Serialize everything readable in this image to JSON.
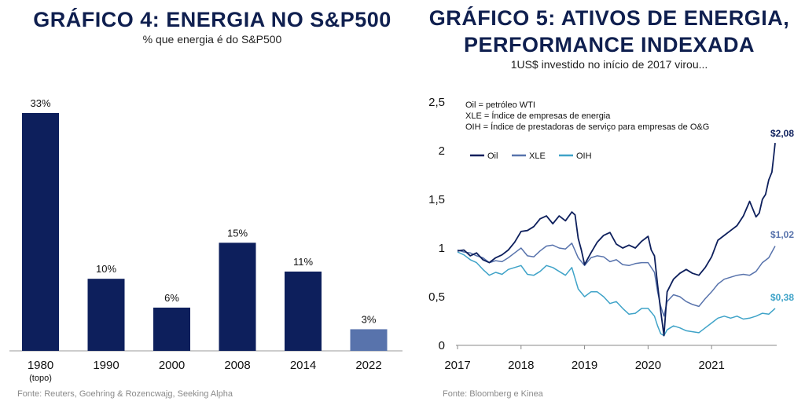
{
  "left": {
    "title": "GRÁFICO 4: ENERGIA NO S&P500",
    "subtitle": "% que energia é do S&P500",
    "source": "Fonte: Reuters, Goehring & Rozencwajg, Seeking Alpha"
  },
  "right": {
    "title_line1": "GRÁFICO 5: ATIVOS DE ENERGIA,",
    "title_line2": "PERFORMANCE INDEXADA",
    "subtitle": "1US$ investido no início de 2017 virou...",
    "source": "Fonte: Bloomberg e Kinea",
    "notes": [
      "Oil = petróleo WTI",
      "XLE = Índice de empresas de energia",
      "OIH = Índice de prestadoras de serviço para empresas de O&G"
    ]
  },
  "chart_data": [
    {
      "type": "bar",
      "categories": [
        "1980",
        "1990",
        "2000",
        "2008",
        "2014",
        "2022"
      ],
      "category_sublabels": [
        "(topo)",
        "",
        "",
        "",
        "",
        ""
      ],
      "values": [
        33,
        10,
        6,
        15,
        11,
        3
      ],
      "value_labels": [
        "33%",
        "10%",
        "6%",
        "15%",
        "11%",
        "3%"
      ],
      "colors": [
        "#0d1f5c",
        "#0d1f5c",
        "#0d1f5c",
        "#0d1f5c",
        "#0d1f5c",
        "#5873ac"
      ],
      "ylim": [
        0,
        36
      ]
    },
    {
      "type": "line",
      "x_ticks": [
        "2017",
        "2018",
        "2019",
        "2020",
        "2021"
      ],
      "y_ticks": [
        "0",
        "0,5",
        "1",
        "1,5",
        "2",
        "2,5"
      ],
      "ylim": [
        0,
        2.5
      ],
      "xlim": [
        2017,
        2022.05
      ],
      "legend": "top-left",
      "series": [
        {
          "name": "Oil",
          "color": "#0d1f5c",
          "end_label": "$2,08",
          "x": [
            2017.0,
            2017.1,
            2017.2,
            2017.3,
            2017.4,
            2017.5,
            2017.6,
            2017.7,
            2017.8,
            2017.9,
            2018.0,
            2018.1,
            2018.2,
            2018.3,
            2018.4,
            2018.5,
            2018.6,
            2018.7,
            2018.8,
            2018.85,
            2018.9,
            2018.95,
            2019.0,
            2019.1,
            2019.2,
            2019.3,
            2019.4,
            2019.5,
            2019.6,
            2019.7,
            2019.8,
            2019.9,
            2020.0,
            2020.05,
            2020.1,
            2020.15,
            2020.2,
            2020.25,
            2020.3,
            2020.4,
            2020.5,
            2020.6,
            2020.7,
            2020.8,
            2020.9,
            2021.0,
            2021.1,
            2021.2,
            2021.3,
            2021.4,
            2021.5,
            2021.6,
            2021.7,
            2021.75,
            2021.8,
            2021.85,
            2021.9,
            2021.95,
            2021.98,
            2022.0
          ],
          "values": [
            0.97,
            0.98,
            0.92,
            0.95,
            0.88,
            0.85,
            0.9,
            0.93,
            0.98,
            1.06,
            1.17,
            1.18,
            1.22,
            1.3,
            1.33,
            1.25,
            1.33,
            1.28,
            1.37,
            1.34,
            1.1,
            0.98,
            0.83,
            0.95,
            1.06,
            1.13,
            1.16,
            1.04,
            1.0,
            1.03,
            1.0,
            1.07,
            1.12,
            0.98,
            0.92,
            0.62,
            0.35,
            0.1,
            0.55,
            0.68,
            0.74,
            0.78,
            0.74,
            0.72,
            0.8,
            0.91,
            1.08,
            1.13,
            1.18,
            1.23,
            1.33,
            1.48,
            1.32,
            1.36,
            1.5,
            1.55,
            1.7,
            1.78,
            1.95,
            2.08
          ]
        },
        {
          "name": "XLE",
          "color": "#5873ac",
          "end_label": "$1,02",
          "x": [
            2017.0,
            2017.1,
            2017.2,
            2017.3,
            2017.4,
            2017.5,
            2017.6,
            2017.7,
            2017.8,
            2017.9,
            2018.0,
            2018.1,
            2018.2,
            2018.3,
            2018.4,
            2018.5,
            2018.6,
            2018.7,
            2018.8,
            2018.9,
            2019.0,
            2019.1,
            2019.2,
            2019.3,
            2019.4,
            2019.5,
            2019.6,
            2019.7,
            2019.8,
            2019.9,
            2020.0,
            2020.1,
            2020.15,
            2020.2,
            2020.25,
            2020.3,
            2020.4,
            2020.5,
            2020.6,
            2020.7,
            2020.8,
            2020.9,
            2021.0,
            2021.1,
            2021.2,
            2021.3,
            2021.4,
            2021.5,
            2021.6,
            2021.7,
            2021.8,
            2021.9,
            2022.0
          ],
          "values": [
            0.98,
            0.96,
            0.95,
            0.92,
            0.9,
            0.85,
            0.87,
            0.86,
            0.9,
            0.95,
            1.0,
            0.92,
            0.91,
            0.97,
            1.02,
            1.03,
            1.0,
            0.99,
            1.05,
            0.9,
            0.82,
            0.9,
            0.92,
            0.91,
            0.86,
            0.88,
            0.83,
            0.82,
            0.84,
            0.85,
            0.85,
            0.75,
            0.55,
            0.4,
            0.3,
            0.45,
            0.52,
            0.5,
            0.45,
            0.42,
            0.4,
            0.48,
            0.55,
            0.63,
            0.68,
            0.7,
            0.72,
            0.73,
            0.72,
            0.76,
            0.85,
            0.9,
            1.02
          ]
        },
        {
          "name": "OIH",
          "color": "#3fa3c8",
          "end_label": "$0,38",
          "x": [
            2017.0,
            2017.1,
            2017.2,
            2017.3,
            2017.4,
            2017.5,
            2017.6,
            2017.7,
            2017.8,
            2017.9,
            2018.0,
            2018.1,
            2018.2,
            2018.3,
            2018.4,
            2018.5,
            2018.6,
            2018.7,
            2018.8,
            2018.9,
            2019.0,
            2019.1,
            2019.2,
            2019.3,
            2019.4,
            2019.5,
            2019.6,
            2019.7,
            2019.8,
            2019.9,
            2020.0,
            2020.1,
            2020.15,
            2020.2,
            2020.25,
            2020.3,
            2020.4,
            2020.5,
            2020.6,
            2020.7,
            2020.8,
            2020.9,
            2021.0,
            2021.1,
            2021.2,
            2021.3,
            2021.4,
            2021.5,
            2021.6,
            2021.7,
            2021.8,
            2021.9,
            2022.0
          ],
          "values": [
            0.96,
            0.93,
            0.88,
            0.85,
            0.78,
            0.72,
            0.75,
            0.73,
            0.78,
            0.8,
            0.82,
            0.73,
            0.72,
            0.76,
            0.82,
            0.8,
            0.76,
            0.72,
            0.8,
            0.58,
            0.5,
            0.55,
            0.55,
            0.5,
            0.43,
            0.45,
            0.38,
            0.32,
            0.33,
            0.38,
            0.38,
            0.3,
            0.2,
            0.12,
            0.1,
            0.16,
            0.2,
            0.18,
            0.15,
            0.14,
            0.13,
            0.18,
            0.23,
            0.28,
            0.3,
            0.28,
            0.3,
            0.27,
            0.28,
            0.3,
            0.33,
            0.32,
            0.38
          ]
        }
      ]
    }
  ]
}
